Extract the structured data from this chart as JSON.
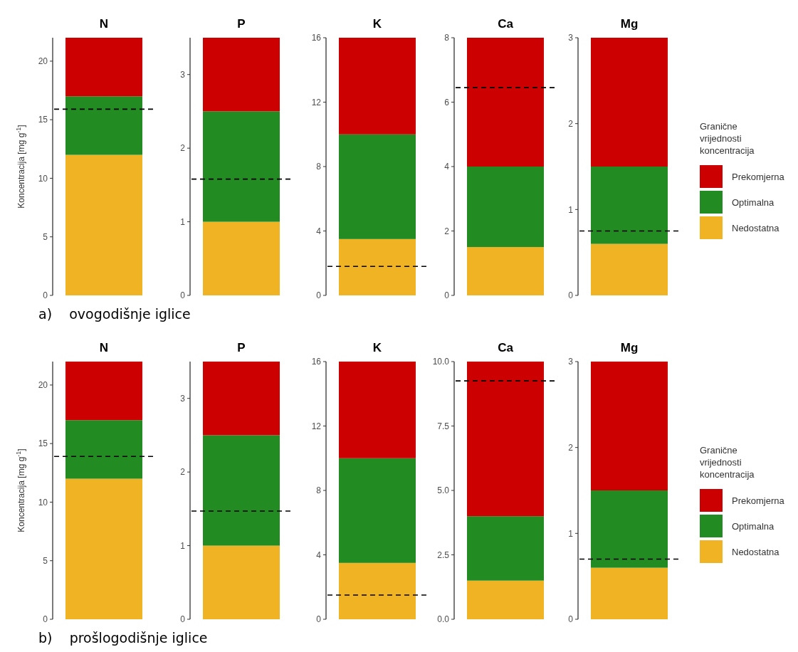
{
  "chart_data": [
    {
      "type": "bar",
      "title": "N",
      "ylabel": "Koncentracija [mg g$^{-1}$]",
      "annotations": [
        "a)    ovogodišnje iglice"
      ],
      "categories": [
        null
      ],
      "stacked": true,
      "ylim": [
        0,
        22
      ],
      "yticks": [
        0,
        5,
        10,
        15,
        20
      ],
      "series": [
        {
          "color": "#f0b323",
          "values": [
            12
          ]
        },
        {
          "color": "#228b22",
          "values": [
            5
          ]
        },
        {
          "color": "#cc0000",
          "values": [
            5
          ]
        }
      ],
      "ref_lines": [
        {
          "axis": "y",
          "value": 15.9,
          "color": "#000000",
          "line_style": "dashed"
        }
      ]
    },
    {
      "type": "bar",
      "title": "P",
      "categories": [
        null
      ],
      "stacked": true,
      "ylim": [
        0,
        3.5
      ],
      "yticks": [
        0,
        1,
        2,
        3
      ],
      "series": [
        {
          "color": "#f0b323",
          "values": [
            1
          ]
        },
        {
          "color": "#228b22",
          "values": [
            1.5
          ]
        },
        {
          "color": "#cc0000",
          "values": [
            1
          ]
        }
      ],
      "ref_lines": [
        {
          "axis": "y",
          "value": 1.58,
          "color": "#000000",
          "line_style": "dashed"
        }
      ]
    },
    {
      "type": "bar",
      "title": "K",
      "categories": [
        null
      ],
      "stacked": true,
      "ylim": [
        0,
        16
      ],
      "yticks": [
        0,
        4,
        8,
        12,
        16
      ],
      "series": [
        {
          "color": "#f0b323",
          "values": [
            3.5
          ]
        },
        {
          "color": "#228b22",
          "values": [
            6.5
          ]
        },
        {
          "color": "#cc0000",
          "values": [
            6
          ]
        }
      ],
      "ref_lines": [
        {
          "axis": "y",
          "value": 1.8,
          "color": "#000000",
          "line_style": "dashed"
        }
      ]
    },
    {
      "type": "bar",
      "title": "Ca",
      "categories": [
        null
      ],
      "stacked": true,
      "ylim": [
        0,
        8
      ],
      "yticks": [
        0,
        2,
        4,
        6,
        8
      ],
      "series": [
        {
          "color": "#f0b323",
          "values": [
            1.5
          ]
        },
        {
          "color": "#228b22",
          "values": [
            2.5
          ]
        },
        {
          "color": "#cc0000",
          "values": [
            4
          ]
        }
      ],
      "ref_lines": [
        {
          "axis": "y",
          "value": 6.45,
          "color": "#000000",
          "line_style": "dashed"
        }
      ]
    },
    {
      "type": "bar",
      "title": "Mg",
      "legend": "right",
      "legend_title": "Granične vrijednosti koncentracija",
      "categories": [
        null
      ],
      "stacked": true,
      "ylim": [
        0,
        3
      ],
      "yticks": [
        0,
        1,
        2,
        3
      ],
      "series": [
        {
          "name": "Nedostatna",
          "color": "#f0b323",
          "values": [
            0.6
          ]
        },
        {
          "name": "Optimalna",
          "color": "#228b22",
          "values": [
            0.9
          ]
        },
        {
          "name": "Prekomjerna",
          "color": "#cc0000",
          "values": [
            1.5
          ]
        }
      ],
      "ref_lines": [
        {
          "axis": "y",
          "value": 0.75,
          "color": "#000000",
          "line_style": "dashed"
        }
      ]
    },
    {
      "type": "bar",
      "title": "N",
      "ylabel": "Koncentracija [mg g$^{-1}$]",
      "annotations": [
        "b)    prošlogodišnje iglice"
      ],
      "categories": [
        null
      ],
      "stacked": true,
      "ylim": [
        0,
        22
      ],
      "yticks": [
        0,
        5,
        10,
        15,
        20
      ],
      "series": [
        {
          "color": "#f0b323",
          "values": [
            12
          ]
        },
        {
          "color": "#228b22",
          "values": [
            5
          ]
        },
        {
          "color": "#cc0000",
          "values": [
            5
          ]
        }
      ],
      "ref_lines": [
        {
          "axis": "y",
          "value": 13.9,
          "color": "#000000",
          "line_style": "dashed"
        }
      ]
    },
    {
      "type": "bar",
      "title": "P",
      "categories": [
        null
      ],
      "stacked": true,
      "ylim": [
        0,
        3.5
      ],
      "yticks": [
        0,
        1,
        2,
        3
      ],
      "series": [
        {
          "color": "#f0b323",
          "values": [
            1
          ]
        },
        {
          "color": "#228b22",
          "values": [
            1.5
          ]
        },
        {
          "color": "#cc0000",
          "values": [
            1
          ]
        }
      ],
      "ref_lines": [
        {
          "axis": "y",
          "value": 1.47,
          "color": "#000000",
          "line_style": "dashed"
        }
      ]
    },
    {
      "type": "bar",
      "title": "K",
      "categories": [
        null
      ],
      "stacked": true,
      "ylim": [
        0,
        16
      ],
      "yticks": [
        0,
        4,
        8,
        12,
        16
      ],
      "series": [
        {
          "color": "#f0b323",
          "values": [
            3.5
          ]
        },
        {
          "color": "#228b22",
          "values": [
            6.5
          ]
        },
        {
          "color": "#cc0000",
          "values": [
            6
          ]
        }
      ],
      "ref_lines": [
        {
          "axis": "y",
          "value": 1.5,
          "color": "#000000",
          "line_style": "dashed"
        }
      ]
    },
    {
      "type": "bar",
      "title": "Ca",
      "categories": [
        null
      ],
      "stacked": true,
      "ylim": [
        0,
        10
      ],
      "yticks": [
        {
          "value": 0,
          "label": "0.0"
        },
        2.5,
        {
          "value": 5,
          "label": "5.0"
        },
        7.5,
        {
          "value": 10,
          "label": "10.0"
        }
      ],
      "series": [
        {
          "color": "#f0b323",
          "values": [
            1.5
          ]
        },
        {
          "color": "#228b22",
          "values": [
            2.5
          ]
        },
        {
          "color": "#cc0000",
          "values": [
            6
          ]
        }
      ],
      "ref_lines": [
        {
          "axis": "y",
          "value": 9.25,
          "color": "#000000",
          "line_style": "dashed"
        }
      ]
    },
    {
      "type": "bar",
      "title": "Mg",
      "legend": "right",
      "legend_title": "Granične vrijednosti koncentracija",
      "categories": [
        null
      ],
      "stacked": true,
      "ylim": [
        0,
        3
      ],
      "yticks": [
        0,
        1,
        2,
        3
      ],
      "series": [
        {
          "name": "Nedostatna",
          "color": "#f0b323",
          "values": [
            0.6
          ]
        },
        {
          "name": "Optimalna",
          "color": "#228b22",
          "values": [
            0.9
          ]
        },
        {
          "name": "Prekomjerna",
          "color": "#cc0000",
          "values": [
            1.5
          ]
        }
      ],
      "ref_lines": [
        {
          "axis": "y",
          "value": 0.7,
          "color": "#000000",
          "line_style": "dashed"
        }
      ]
    }
  ]
}
